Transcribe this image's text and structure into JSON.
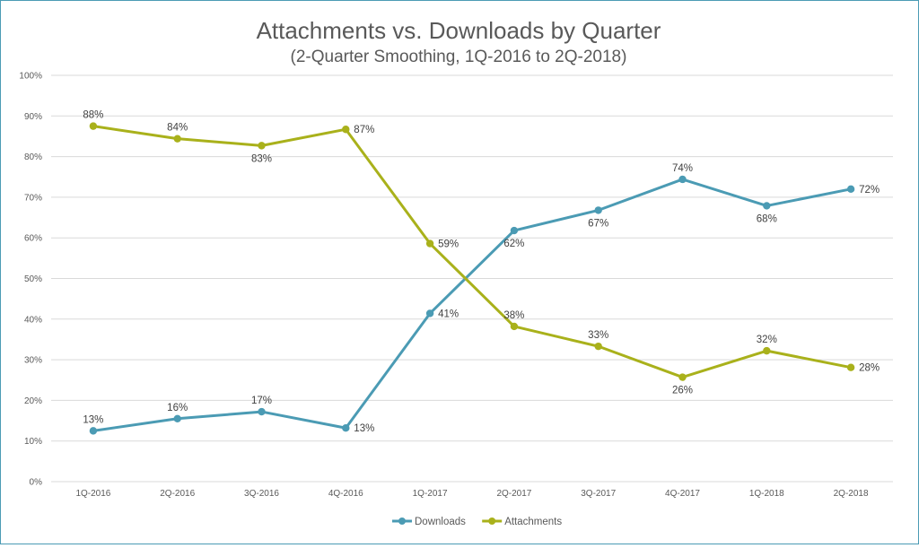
{
  "chart_data": {
    "type": "line",
    "title": "Attachments vs. Downloads by Quarter",
    "subtitle": "(2-Quarter Smoothing, 1Q-2016 to 2Q-2018)",
    "categories": [
      "1Q-2016",
      "2Q-2016",
      "3Q-2016",
      "4Q-2016",
      "1Q-2017",
      "2Q-2017",
      "3Q-2017",
      "4Q-2017",
      "1Q-2018",
      "2Q-2018"
    ],
    "ylim": [
      0,
      100
    ],
    "yticks": [
      "0%",
      "10%",
      "20%",
      "30%",
      "40%",
      "50%",
      "60%",
      "70%",
      "80%",
      "90%",
      "100%"
    ],
    "grid": true,
    "legend": "bottom",
    "series": [
      {
        "name": "Downloads",
        "color": "#4b9bb4",
        "values": [
          12.5,
          15.5,
          17.2,
          13.2,
          41.4,
          61.8,
          66.8,
          74.4,
          67.9,
          72.0
        ],
        "labels": [
          "13%",
          "16%",
          "17%",
          "13%",
          "41%",
          "62%",
          "67%",
          "74%",
          "68%",
          "72%"
        ],
        "label_pos": [
          "above",
          "above",
          "above",
          "right",
          "right",
          "below",
          "below",
          "above",
          "below",
          "right"
        ]
      },
      {
        "name": "Attachments",
        "color": "#a9b11b",
        "values": [
          87.5,
          84.4,
          82.7,
          86.7,
          58.6,
          38.2,
          33.3,
          25.7,
          32.2,
          28.1
        ],
        "labels": [
          "88%",
          "84%",
          "83%",
          "87%",
          "59%",
          "38%",
          "33%",
          "26%",
          "32%",
          "28%"
        ],
        "label_pos": [
          "above",
          "above",
          "below",
          "right",
          "right",
          "above",
          "above",
          "below",
          "above",
          "right"
        ]
      }
    ]
  }
}
